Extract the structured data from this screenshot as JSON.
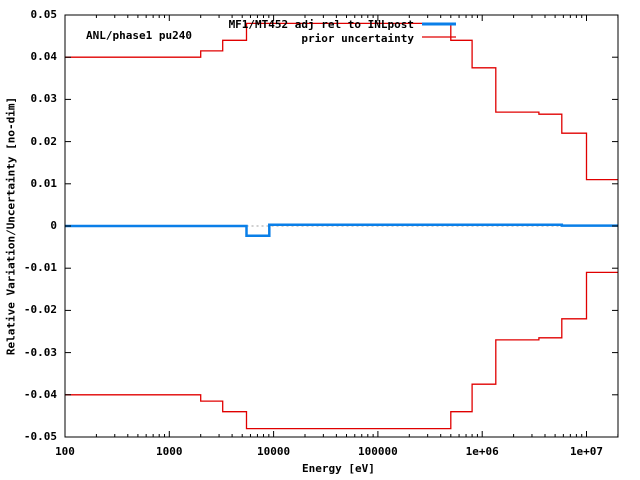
{
  "chart_data": {
    "type": "line",
    "title": "",
    "annotation": "ANL/phase1 pu240",
    "xlabel": "Energy [eV]",
    "ylabel": "Relative Variation/Uncertainty [no-dim]",
    "xscale": "log",
    "xlim": [
      100,
      20000000
    ],
    "ylim": [
      -0.05,
      0.05
    ],
    "grid": false,
    "legend_position": "top-center",
    "xticks": [
      100,
      1000,
      10000,
      100000,
      1000000,
      10000000
    ],
    "xtick_labels": [
      "100",
      "1000",
      "10000",
      "100000",
      "1e+06",
      "1e+07"
    ],
    "yticks": [
      -0.05,
      -0.04,
      -0.03,
      -0.02,
      -0.01,
      0,
      0.01,
      0.02,
      0.03,
      0.04,
      0.05
    ],
    "ytick_labels": [
      "-0.05",
      "-0.04",
      "-0.03",
      "-0.02",
      "-0.01",
      "0",
      "0.01",
      "0.02",
      "0.03",
      "0.04",
      "0.05"
    ],
    "series": [
      {
        "name": "MF1/MT452 adj rel to INLpost",
        "color": "#0a7fe8",
        "style": "step",
        "x": [
          100,
          5500,
          9100,
          5800000,
          20000000
        ],
        "values": [
          0.0,
          -0.0023,
          0.0003,
          0.0001,
          0.0001
        ]
      },
      {
        "name": "prior uncertainty",
        "color": "#e00000",
        "style": "step",
        "mirrored": true,
        "x": [
          100,
          2000,
          3250,
          5500,
          500000,
          800000,
          1350000,
          3500000,
          5800000,
          10000000,
          20000000
        ],
        "values": [
          0.04,
          0.0415,
          0.044,
          0.048,
          0.044,
          0.0375,
          0.027,
          0.0265,
          0.022,
          0.011,
          0.011
        ]
      }
    ]
  },
  "legend": {
    "entries": [
      {
        "label": "MF1/MT452 adj rel to INLpost",
        "color": "#0a7fe8"
      },
      {
        "label": "prior uncertainty",
        "color": "#e00000"
      }
    ]
  }
}
